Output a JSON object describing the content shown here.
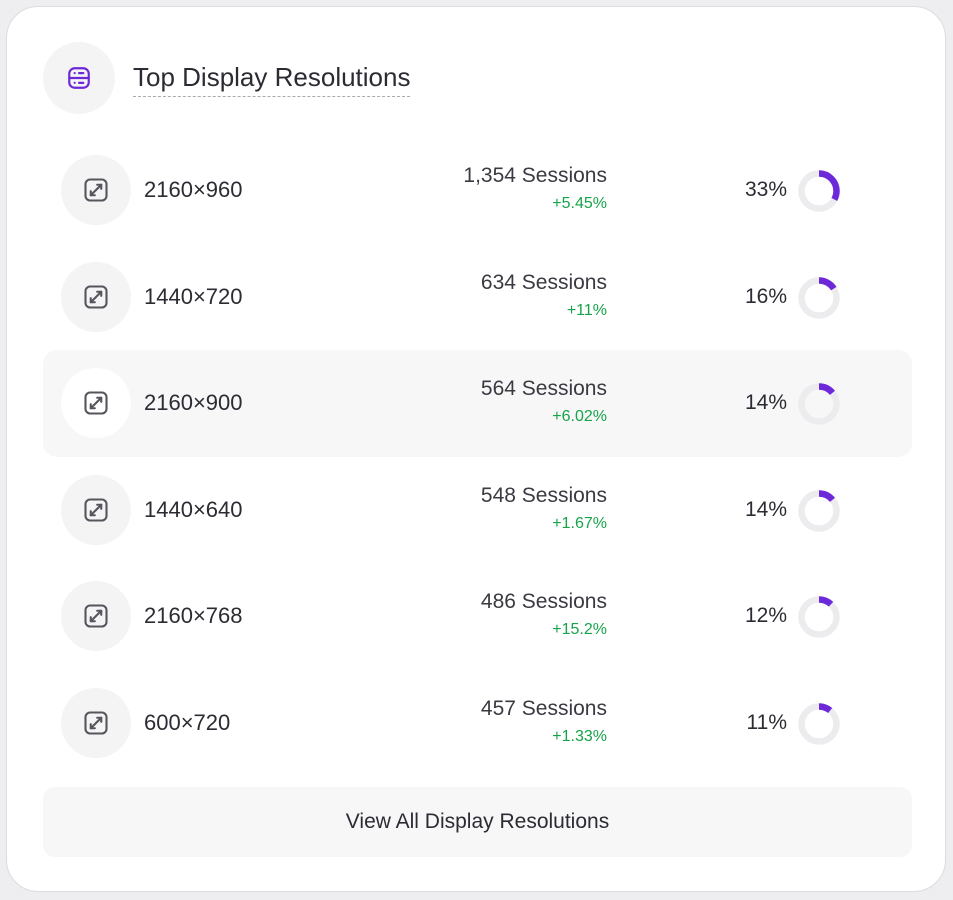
{
  "widget": {
    "title": "Top Display Resolutions",
    "header_icon": "server-icon",
    "row_icon": "expand-arrow-icon",
    "accent_color": "#6d28d9",
    "track_color": "#ececee",
    "positive_color": "#16a34a",
    "view_all_label": "View All Display Resolutions"
  },
  "rows": [
    {
      "resolution": "2160×960",
      "sessions": "1,354 Sessions",
      "change": "+5.45%",
      "percent_label": "33%",
      "percent": 33
    },
    {
      "resolution": "1440×720",
      "sessions": "634 Sessions",
      "change": "+11%",
      "percent_label": "16%",
      "percent": 16
    },
    {
      "resolution": "2160×900",
      "sessions": "564 Sessions",
      "change": "+6.02%",
      "percent_label": "14%",
      "percent": 14
    },
    {
      "resolution": "1440×640",
      "sessions": "548 Sessions",
      "change": "+1.67%",
      "percent_label": "14%",
      "percent": 14
    },
    {
      "resolution": "2160×768",
      "sessions": "486 Sessions",
      "change": "+15.2%",
      "percent_label": "12%",
      "percent": 12
    },
    {
      "resolution": "600×720",
      "sessions": "457 Sessions",
      "change": "+1.33%",
      "percent_label": "11%",
      "percent": 11
    }
  ]
}
